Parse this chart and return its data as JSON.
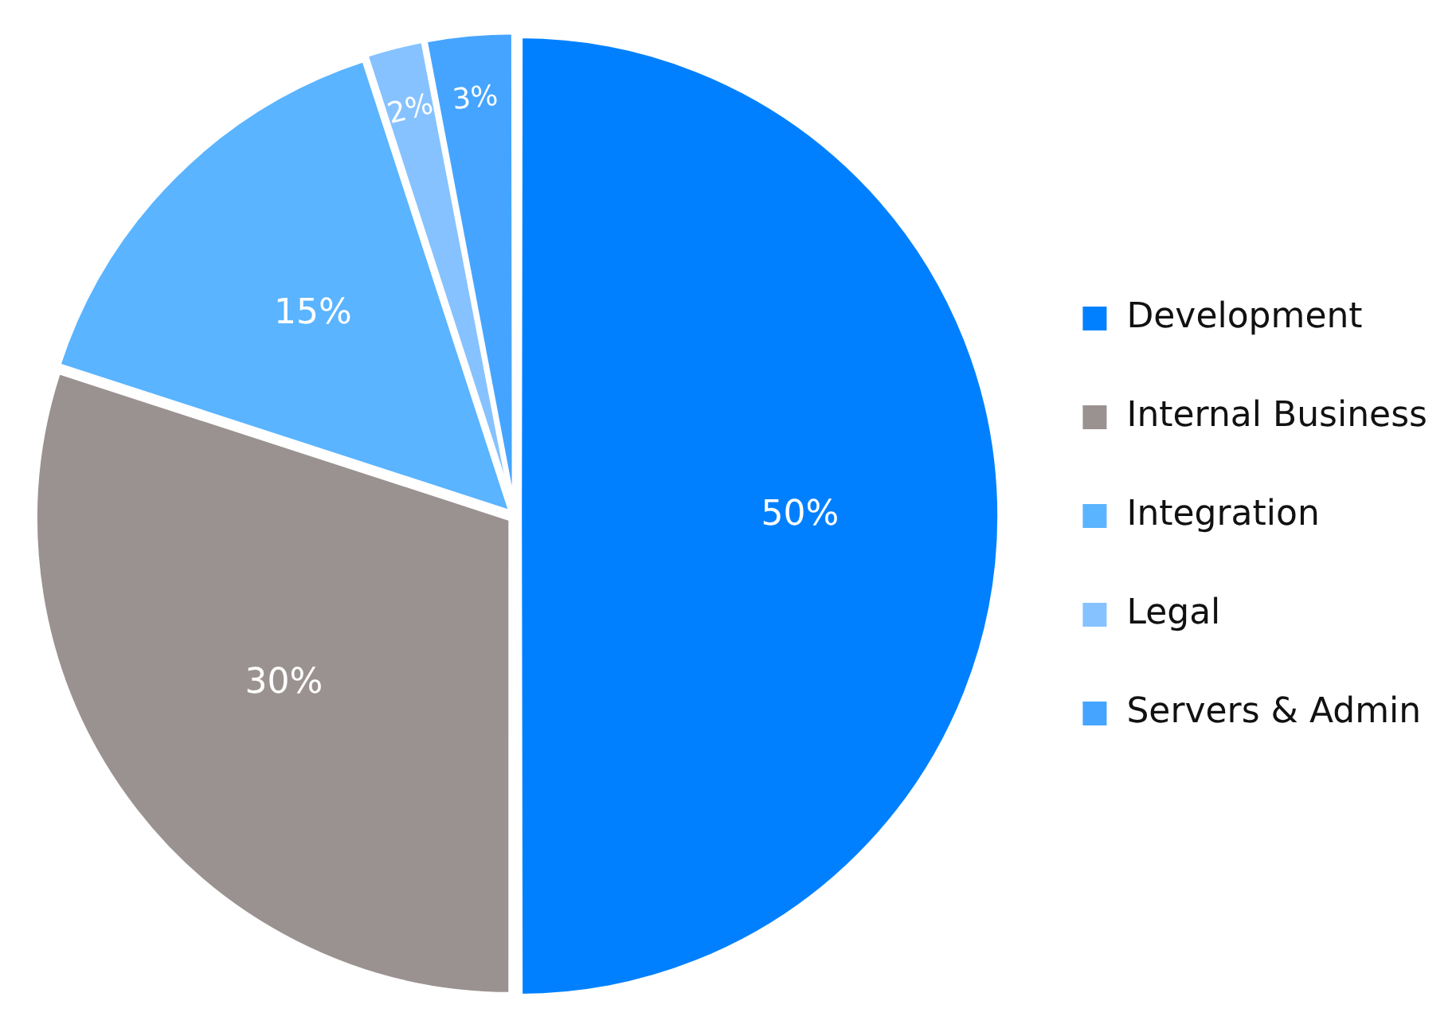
{
  "chart_data": {
    "type": "pie",
    "categories": [
      "Development",
      "Internal Business",
      "Integration",
      "Legal",
      "Servers & Admin"
    ],
    "values": [
      50,
      30,
      15,
      2,
      3
    ],
    "value_labels": [
      "50%",
      "30%",
      "15%",
      "2%",
      "3%"
    ],
    "colors": [
      "#0080ff",
      "#9a9290",
      "#5ab4ff",
      "#86c2ff",
      "#45a4ff"
    ],
    "legend": "right"
  }
}
